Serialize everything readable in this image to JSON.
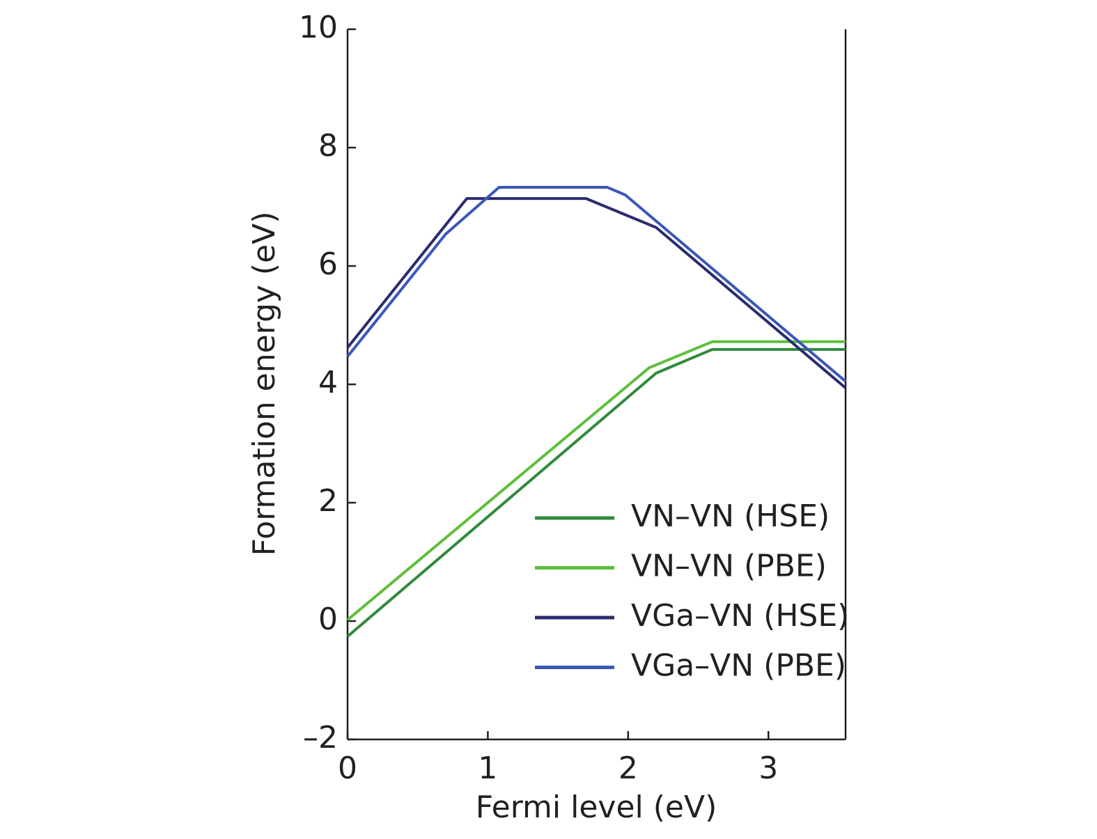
{
  "chart_data": {
    "type": "line",
    "xlabel": "Fermi level (eV)",
    "ylabel": "Formation energy (eV)",
    "xlim": [
      0,
      3.55
    ],
    "ylim": [
      -2,
      10
    ],
    "xticks": [
      0,
      1,
      2,
      3
    ],
    "yticks": [
      {
        "value": -2,
        "label": "–2"
      },
      0,
      2,
      4,
      6,
      8,
      10
    ],
    "legend": "lower right",
    "series": [
      {
        "name": "VN–VN (HSE)",
        "color": "#2f8a3c",
        "x": [
          0,
          2.2,
          2.6,
          3.55
        ],
        "values": [
          -0.26,
          4.19,
          4.59,
          4.59
        ]
      },
      {
        "name": "VN–VN (PBE)",
        "color": "#5dbf3b",
        "x": [
          0,
          2.15,
          2.6,
          3.55
        ],
        "values": [
          0.02,
          4.28,
          4.72,
          4.72
        ]
      },
      {
        "name": "VGa–VN (HSE)",
        "color": "#2b2b6f",
        "x": [
          0,
          0.85,
          1.7,
          2.2,
          3.55
        ],
        "values": [
          4.62,
          7.14,
          7.14,
          6.65,
          3.94
        ]
      },
      {
        "name": "VGa–VN (PBE)",
        "color": "#3a57b8",
        "x": [
          0,
          0.7,
          1.08,
          1.85,
          1.98,
          3.55
        ],
        "values": [
          4.47,
          6.54,
          7.33,
          7.33,
          7.2,
          4.05
        ]
      }
    ]
  }
}
